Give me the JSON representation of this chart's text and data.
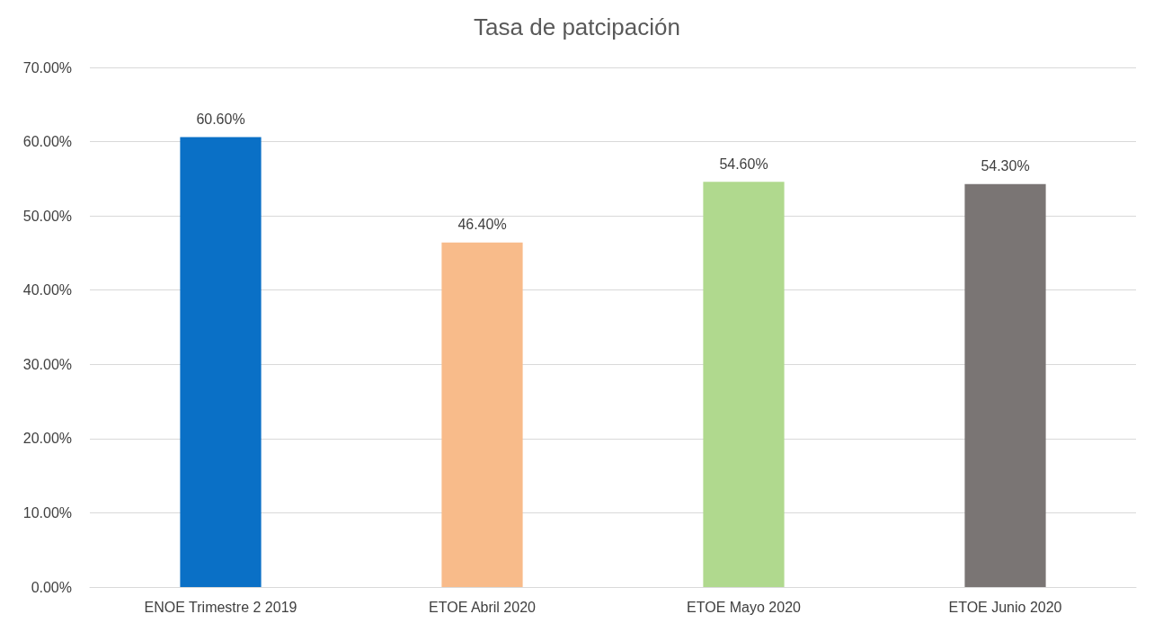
{
  "chart_data": {
    "type": "bar",
    "title": "Tasa de patcipación",
    "categories": [
      "ENOE Trimestre 2 2019",
      "ETOE Abril 2020",
      "ETOE Mayo 2020",
      "ETOE Junio 2020"
    ],
    "values": [
      60.6,
      46.4,
      54.6,
      54.3
    ],
    "colors": [
      "#0a70c6",
      "#f8bb8a",
      "#b0d98e",
      "#7a7574"
    ],
    "value_labels": [
      "60.60%",
      "46.40%",
      "54.60%",
      "54.30%"
    ],
    "ylim": [
      0,
      70
    ],
    "yticks": [
      {
        "value": 0,
        "label": "0.00%"
      },
      {
        "value": 10,
        "label": "10.00%"
      },
      {
        "value": 20,
        "label": "20.00%"
      },
      {
        "value": 30,
        "label": "30.00%"
      },
      {
        "value": 40,
        "label": "40.00%"
      },
      {
        "value": 50,
        "label": "50.00%"
      },
      {
        "value": 60,
        "label": "60.00%"
      },
      {
        "value": 70,
        "label": "70.00%"
      }
    ],
    "grid": "y"
  }
}
